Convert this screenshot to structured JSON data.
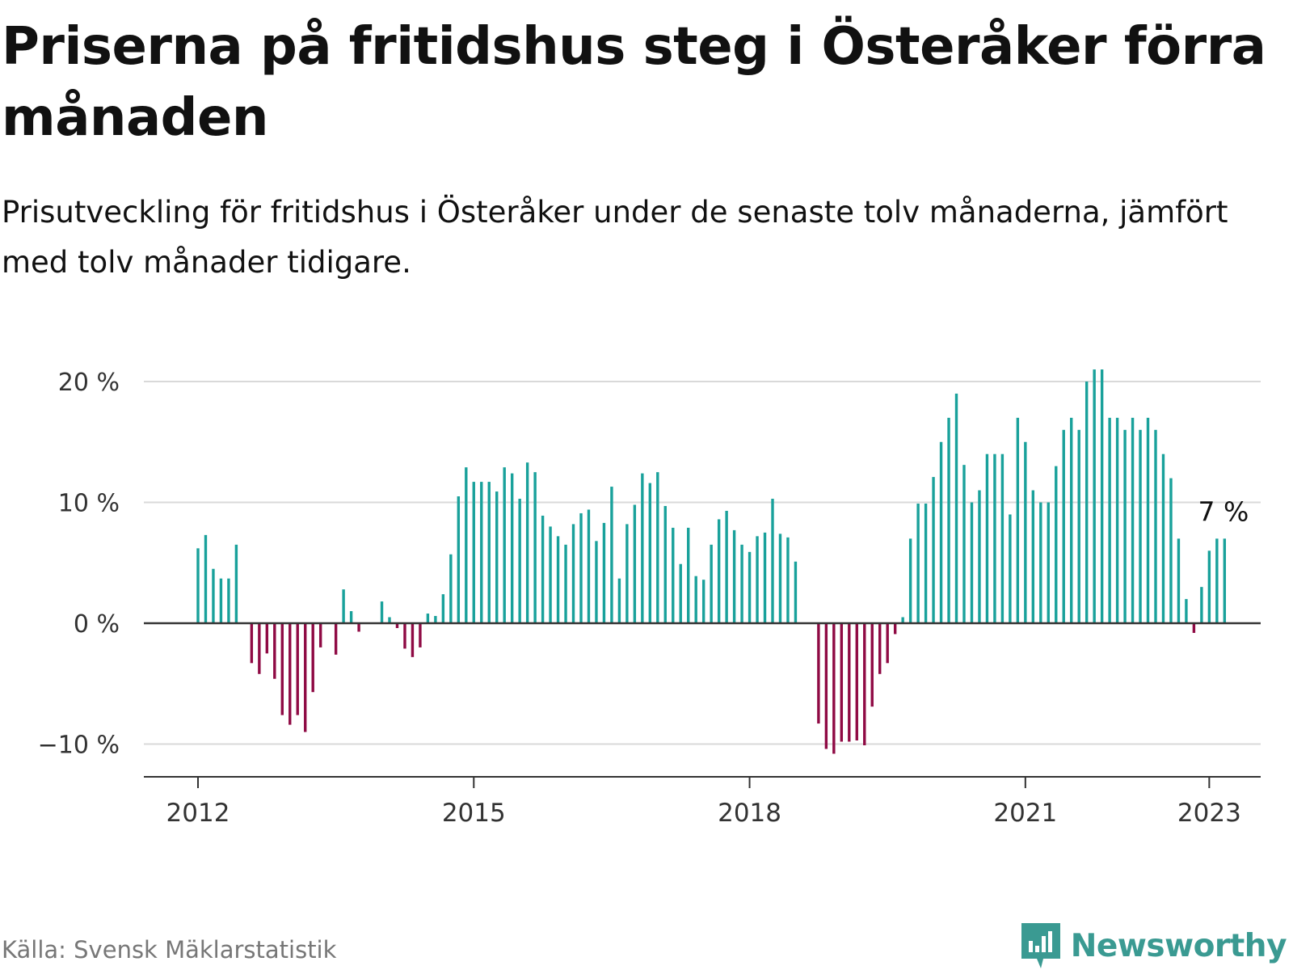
{
  "title": "Priserna på fritidshus steg i Österåker förra månaden",
  "subtitle": "Prisutveckling för fritidshus i Österåker under de senaste tolv månaderna, jämfört med tolv månader tidigare.",
  "source": "Källa: Svensk Mäklarstatistik",
  "logo": {
    "text": "Newsworthy",
    "icon": "newsworthy-chart-bubble-icon",
    "color": "#3a9a92"
  },
  "colors": {
    "positive": "#19a19b",
    "negative": "#8f0a44",
    "grid": "#d9d9d9",
    "zero_line": "#333333",
    "axis_text": "#333333"
  },
  "chart_data": {
    "type": "bar",
    "title": "Priserna på fritidshus steg i Österåker förra månaden",
    "subtitle": "Prisutveckling för fritidshus i Österåker under de senaste tolv månaderna, jämfört med tolv månader tidigare.",
    "x_start": "2012-01",
    "x_end": "2023-01",
    "x_ticks": [
      "2012",
      "2015",
      "2018",
      "2021",
      "2023"
    ],
    "y_ticks": [
      20,
      10,
      0,
      -10
    ],
    "y_tick_labels": [
      "20 %",
      "10 %",
      "0 %",
      "−10 %"
    ],
    "ylim": [
      -12.5,
      21
    ],
    "grid": true,
    "latest_label": "7 %",
    "values": [
      6.2,
      7.3,
      4.5,
      3.7,
      3.7,
      6.5,
      null,
      -3.3,
      -4.2,
      -2.5,
      -4.6,
      -7.6,
      -8.4,
      -7.6,
      -9.0,
      -5.7,
      -2.0,
      null,
      -2.6,
      2.8,
      1.0,
      -0.7,
      null,
      null,
      1.8,
      0.5,
      -0.4,
      -2.1,
      -2.8,
      -2.0,
      0.8,
      0.6,
      2.4,
      5.7,
      10.5,
      12.9,
      11.7,
      11.7,
      11.7,
      10.9,
      12.9,
      12.4,
      10.3,
      13.3,
      12.5,
      8.9,
      8.0,
      7.2,
      6.5,
      8.2,
      9.1,
      9.4,
      6.8,
      8.3,
      11.3,
      3.7,
      8.2,
      9.8,
      12.4,
      11.6,
      12.5,
      9.7,
      7.9,
      4.9,
      7.9,
      3.9,
      3.6,
      6.5,
      8.6,
      9.3,
      7.7,
      6.5,
      5.9,
      7.2,
      7.5,
      10.3,
      7.4,
      7.1,
      5.1,
      null,
      null,
      -8.3,
      -10.4,
      -10.8,
      -9.8,
      -9.8,
      -9.7,
      -10.1,
      -6.9,
      -4.2,
      -3.3,
      -0.9,
      0.5,
      7.0,
      9.9,
      9.9,
      12.1,
      15.0,
      17.0,
      19.0,
      13.1,
      10.0,
      11.0,
      14.0,
      14.0,
      14.0,
      9.0,
      17.0,
      15.0,
      11.0,
      10.0,
      10.0,
      13.0,
      16.0,
      17.0,
      16.0,
      20.0,
      21.0,
      21.0,
      17.0,
      17.0,
      16.0,
      17.0,
      16.0,
      17.0,
      16.0,
      14.0,
      12.0,
      7.0,
      2.0,
      -0.8,
      3.0,
      6.0,
      7.0,
      7.0
    ]
  }
}
